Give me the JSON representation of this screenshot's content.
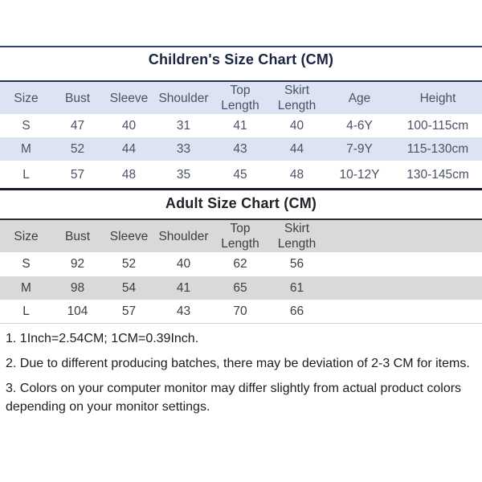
{
  "children_chart": {
    "title": "Children's Size Chart (CM)",
    "columns": [
      "Size",
      "Bust",
      "Sleeve",
      "Shoulder",
      "Top Length",
      "Skirt Length",
      "Age",
      "Height"
    ],
    "rows": [
      [
        "S",
        "47",
        "40",
        "31",
        "41",
        "40",
        "4-6Y",
        "100-115cm"
      ],
      [
        "M",
        "52",
        "44",
        "33",
        "43",
        "44",
        "7-9Y",
        "115-130cm"
      ],
      [
        "L",
        "57",
        "48",
        "35",
        "45",
        "48",
        "10-12Y",
        "130-145cm"
      ]
    ],
    "stripe_color": "#dde3f3",
    "border_color": "#2a3450"
  },
  "adult_chart": {
    "title": "Adult Size Chart (CM)",
    "columns": [
      "Size",
      "Bust",
      "Sleeve",
      "Shoulder",
      "Top Length",
      "Skirt Length"
    ],
    "rows": [
      [
        "S",
        "92",
        "52",
        "40",
        "62",
        "56"
      ],
      [
        "M",
        "98",
        "54",
        "41",
        "65",
        "61"
      ],
      [
        "L",
        "104",
        "57",
        "43",
        "70",
        "66"
      ]
    ],
    "stripe_color": "#d9d9d9",
    "border_color": "#2b2b2b"
  },
  "notes": {
    "items": [
      "1. 1Inch=2.54CM; 1CM=0.39Inch.",
      "2. Due to different producing batches, there may be deviation of 2-3 CM for items.",
      "3. Colors on your computer monitor may differ slightly from actual product colors depending on your monitor settings."
    ]
  },
  "colors": {
    "top_rule": "#2b4470",
    "section_rule": "#171c28",
    "children_title_text": "#1b2440",
    "children_table_text": "#4a5264",
    "adult_table_text": "#3e3e3e"
  }
}
